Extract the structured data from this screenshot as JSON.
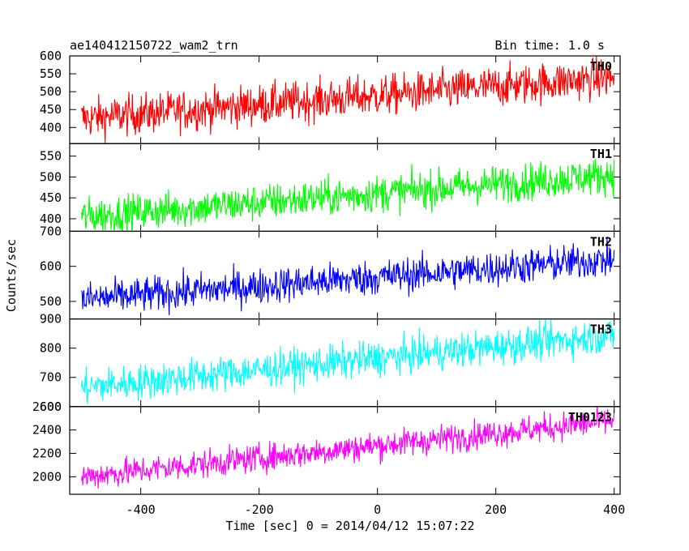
{
  "header": {
    "title": "ae140412150722_wam2_trn",
    "bin_time": "Bin time: 1.0 s"
  },
  "axes": {
    "xlabel": "Time [sec] 0 = 2014/04/12 15:07:22",
    "ylabel": "Counts/sec",
    "xlim": [
      -520,
      410
    ],
    "xticks": [
      -400,
      -200,
      0,
      200,
      400
    ]
  },
  "chart_data": [
    {
      "type": "line",
      "name": "TH0",
      "color": "#ff0000",
      "x_range": [
        -500,
        400
      ],
      "trend_start": 425,
      "trend_end": 540,
      "noise": 28,
      "ylim": [
        355,
        600
      ],
      "yticks": [
        400,
        450,
        500,
        550,
        600
      ]
    },
    {
      "type": "line",
      "name": "TH1",
      "color": "#00ff00",
      "x_range": [
        -500,
        400
      ],
      "trend_start": 405,
      "trend_end": 505,
      "noise": 22,
      "ylim": [
        370,
        580
      ],
      "yticks": [
        400,
        450,
        500,
        550
      ]
    },
    {
      "type": "line",
      "name": "TH2",
      "color": "#0000ff",
      "x_range": [
        -500,
        400
      ],
      "trend_start": 505,
      "trend_end": 620,
      "noise": 25,
      "ylim": [
        450,
        700
      ],
      "yticks": [
        500,
        600,
        700
      ]
    },
    {
      "type": "line",
      "name": "TH3",
      "color": "#00ffff",
      "x_range": [
        -500,
        400
      ],
      "trend_start": 665,
      "trend_end": 845,
      "noise": 30,
      "ylim": [
        600,
        900
      ],
      "yticks": [
        600,
        700,
        800,
        900
      ]
    },
    {
      "type": "line",
      "name": "TH0123",
      "color": "#ff00ff",
      "x_range": [
        -500,
        400
      ],
      "trend_start": 2000,
      "trend_end": 2480,
      "noise": 60,
      "ylim": [
        1850,
        2600
      ],
      "yticks": [
        2000,
        2200,
        2400,
        2600
      ]
    }
  ]
}
